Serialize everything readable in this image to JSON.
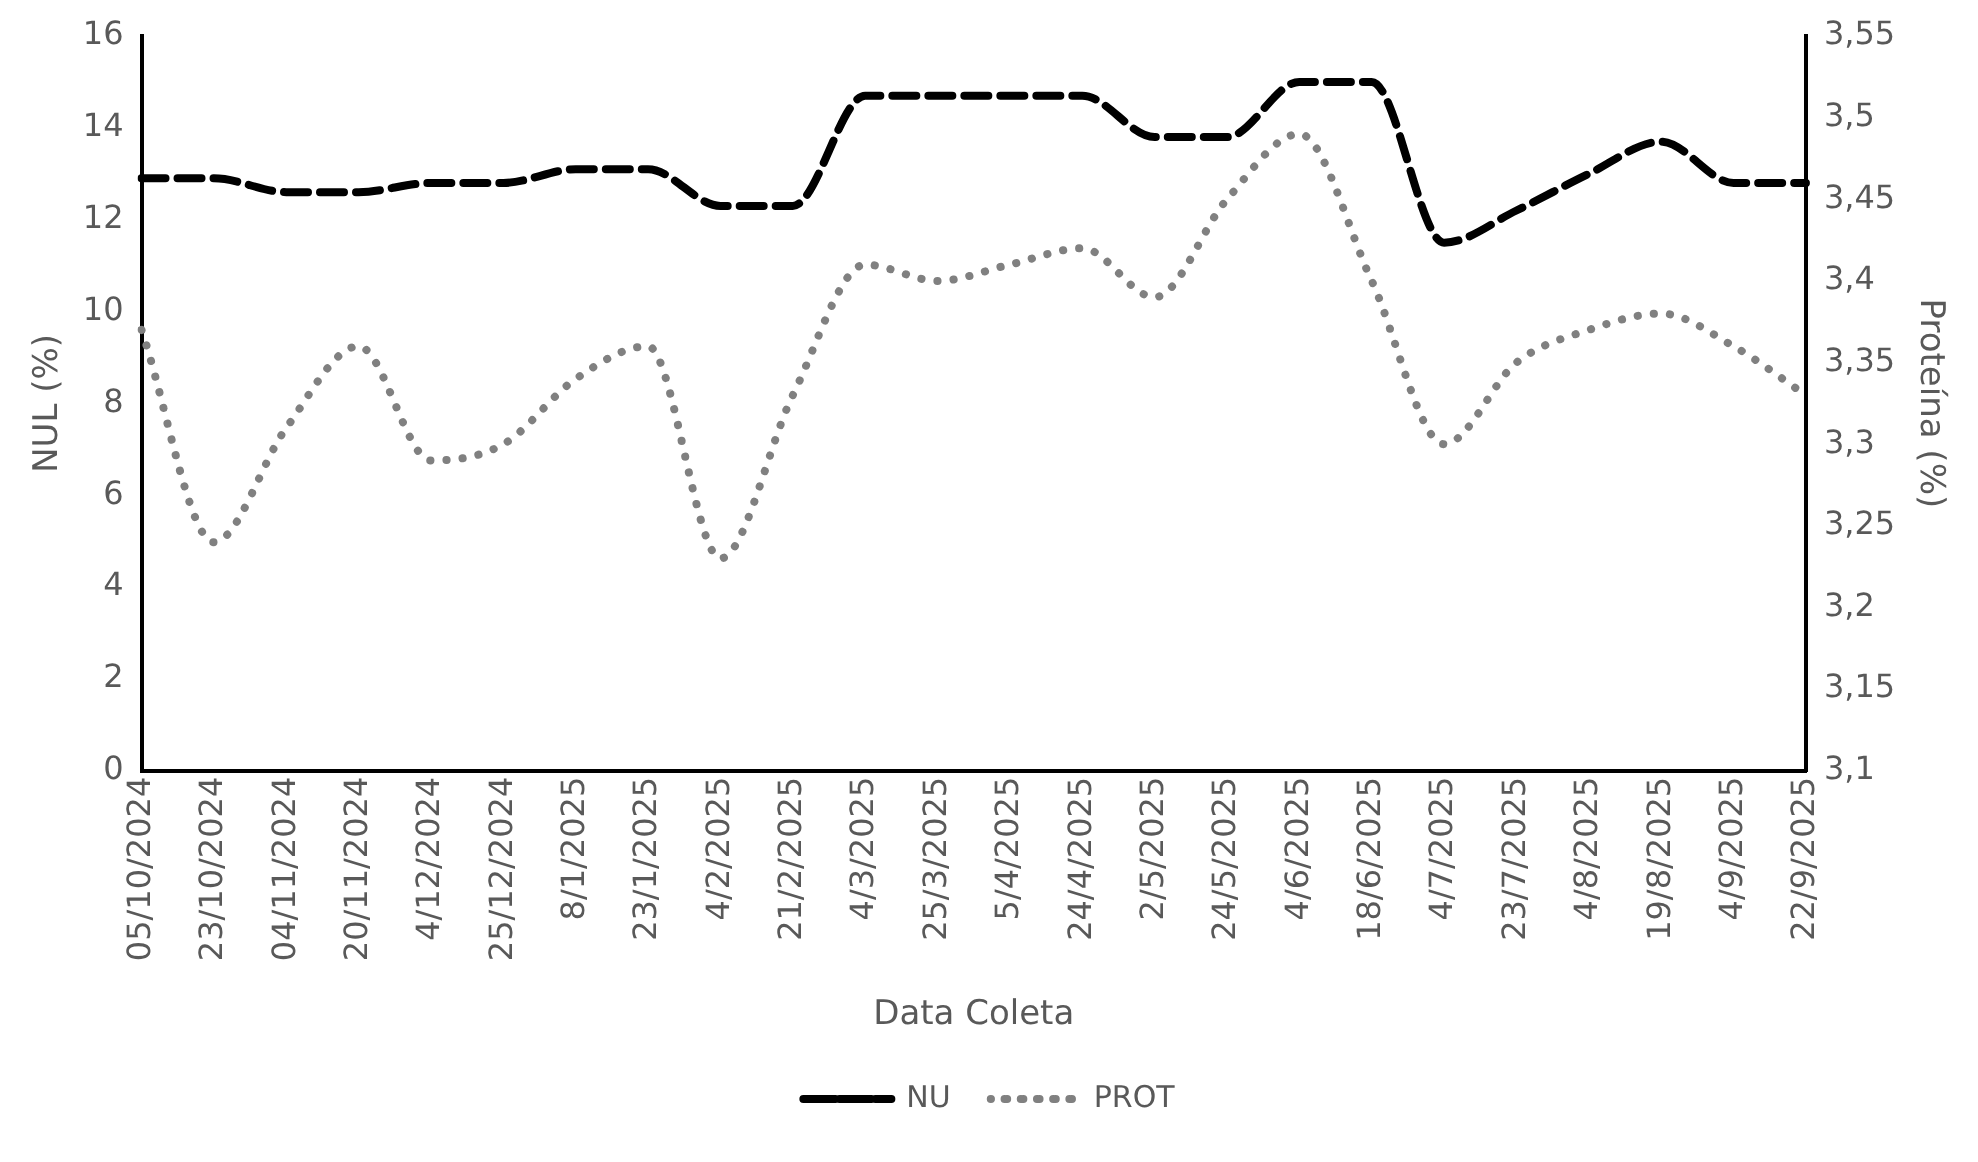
{
  "chart_data": {
    "type": "line",
    "xlabel": "Data Coleta",
    "ylabel": "NUL (%)",
    "y2label": "Proteína (%)",
    "categories": [
      "05/10/2024",
      "23/10/2024",
      "04/11/2024",
      "20/11/2024",
      "4/12/2024",
      "25/12/2024",
      "8/1/2025",
      "23/1/2025",
      "4/2/2025",
      "21/2/2025",
      "4/3/2025",
      "25/3/2025",
      "5/4/2025",
      "24/4/2025",
      "2/5/2025",
      "24/5/2025",
      "4/6/2025",
      "18/6/2025",
      "4/7/2025",
      "23/7/2025",
      "4/8/2025",
      "19/8/2025",
      "4/9/2025",
      "22/9/2025"
    ],
    "series": [
      {
        "name": "NU",
        "color": "#000000",
        "line_style": "dashed",
        "values": [
          12.9,
          12.9,
          12.6,
          12.6,
          12.8,
          12.8,
          13.1,
          13.1,
          12.3,
          12.3,
          14.7,
          14.7,
          14.7,
          14.7,
          13.8,
          13.8,
          15.0,
          15.0,
          11.5,
          12.2,
          13.0,
          13.7,
          12.8,
          12.8
        ]
      },
      {
        "name": "PROT",
        "color": "#808080",
        "line_style": "dotted",
        "axis": "y2",
        "values": [
          3.37,
          3.24,
          3.31,
          3.36,
          3.29,
          3.3,
          3.34,
          3.36,
          3.23,
          3.33,
          3.41,
          3.4,
          3.41,
          3.42,
          3.39,
          3.45,
          3.49,
          3.4,
          3.3,
          3.35,
          3.37,
          3.38,
          3.36,
          3.33
        ]
      }
    ],
    "ylim": [
      0,
      16
    ],
    "yticks": [
      0,
      2,
      4,
      6,
      8,
      10,
      12,
      14,
      16
    ],
    "y2lim": [
      3.1,
      3.55
    ],
    "y2ticks": [
      {
        "value": 3.1,
        "label": "3,1"
      },
      {
        "value": 3.15,
        "label": "3,15"
      },
      {
        "value": 3.2,
        "label": "3,2"
      },
      {
        "value": 3.25,
        "label": "3,25"
      },
      {
        "value": 3.3,
        "label": "3,3"
      },
      {
        "value": 3.35,
        "label": "3,35"
      },
      {
        "value": 3.4,
        "label": "3,4"
      },
      {
        "value": 3.45,
        "label": "3,45"
      },
      {
        "value": 3.5,
        "label": "3,5"
      },
      {
        "value": 3.55,
        "label": "3,55"
      }
    ],
    "grid": false,
    "legend": "bottom",
    "marker": "none"
  }
}
